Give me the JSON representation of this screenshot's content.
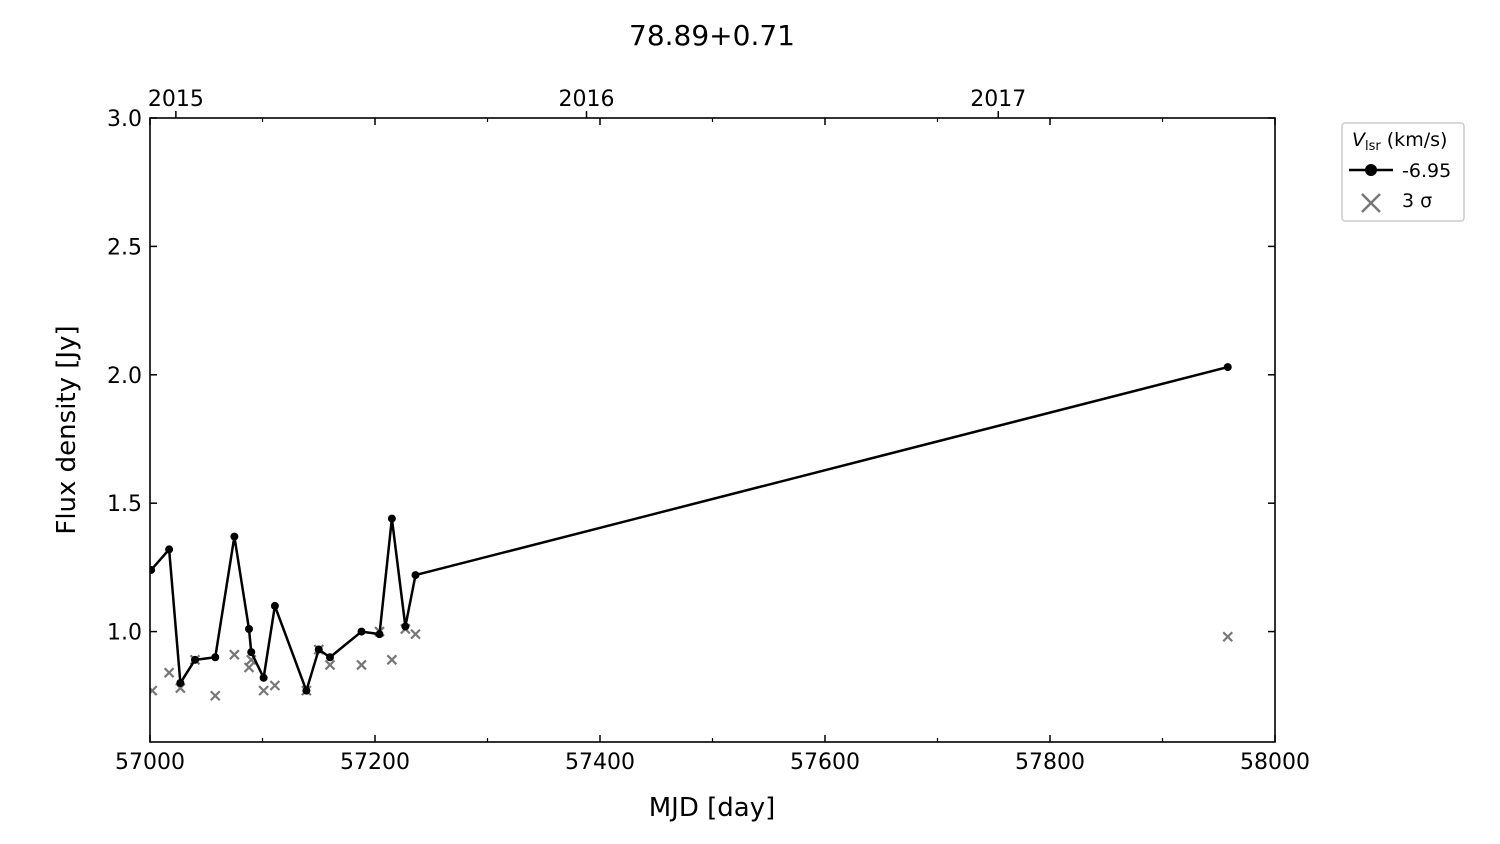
{
  "chart_data": {
    "type": "line",
    "title": "78.89+0.71",
    "xlabel": "MJD [day]",
    "ylabel": "Flux density [Jy]",
    "xlim": [
      57000,
      58000
    ],
    "ylim": [
      0.57,
      3.0
    ],
    "x_ticks": [
      57000,
      57200,
      57400,
      57600,
      57800,
      58000
    ],
    "x_tick_labels": [
      "57000",
      "57200",
      "57400",
      "57600",
      "57800",
      "58000"
    ],
    "y_ticks": [
      1.0,
      1.5,
      2.0,
      2.5,
      3.0
    ],
    "y_tick_labels": [
      "1.0",
      "1.5",
      "2.0",
      "2.5",
      "3.0"
    ],
    "top_axis": {
      "ticks": [
        57023,
        57388,
        57754
      ],
      "labels": [
        "2015",
        "2016",
        "2017"
      ]
    },
    "legend": {
      "title_main": "V",
      "title_sub": "lsr",
      "title_unit": " (km/s)",
      "placement": "outside-top-right",
      "entries": [
        "-6.95",
        "3 σ"
      ]
    },
    "series": [
      {
        "name": "-6.95",
        "style": "line-marker",
        "color": "#000000",
        "x": [
          57001,
          57017,
          57027,
          57040,
          57058,
          57075,
          57088,
          57090,
          57101,
          57111,
          57139,
          57150,
          57160,
          57188,
          57204,
          57215,
          57227,
          57236,
          57958
        ],
        "y": [
          1.24,
          1.32,
          0.8,
          0.89,
          0.9,
          1.37,
          1.01,
          0.92,
          0.82,
          1.1,
          0.77,
          0.93,
          0.9,
          1.0,
          0.99,
          1.44,
          1.02,
          1.22,
          2.03
        ]
      },
      {
        "name": "3 σ",
        "style": "x-marker",
        "color": "#777777",
        "x": [
          57002,
          57017,
          57027,
          57040,
          57058,
          57075,
          57088,
          57090,
          57101,
          57111,
          57139,
          57150,
          57160,
          57188,
          57204,
          57215,
          57227,
          57236,
          57958
        ],
        "y": [
          0.77,
          0.84,
          0.78,
          0.89,
          0.75,
          0.91,
          0.86,
          0.89,
          0.77,
          0.79,
          0.77,
          0.93,
          0.87,
          0.87,
          1.0,
          0.89,
          1.01,
          0.99,
          0.98
        ]
      }
    ]
  }
}
